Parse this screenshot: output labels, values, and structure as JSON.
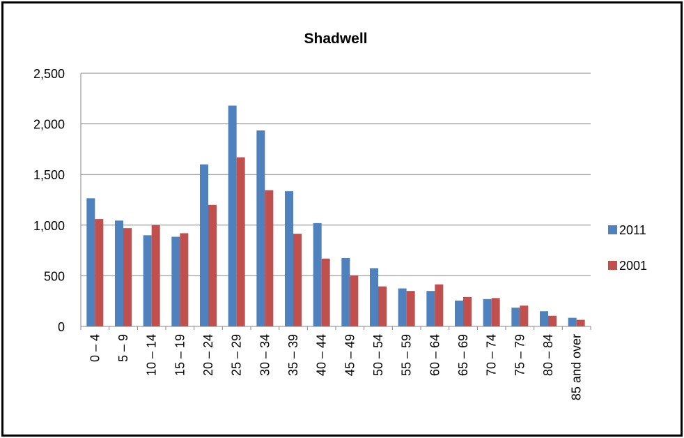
{
  "chart_data": {
    "type": "bar",
    "title": "Shadwell",
    "xlabel": "",
    "ylabel": "",
    "ylim": [
      0,
      2500
    ],
    "yticks": [
      0,
      500,
      1000,
      1500,
      2000,
      2500
    ],
    "ytick_labels": [
      "0",
      "500",
      "1,000",
      "1,500",
      "2,000",
      "2,500"
    ],
    "grid": true,
    "legend_position": "right",
    "categories": [
      "0 – 4",
      "5 – 9",
      "10 – 14",
      "15 – 19",
      "20 – 24",
      "25 – 29",
      "30 – 34",
      "35 – 39",
      "40 – 44",
      "45 – 49",
      "50 – 54",
      "55 – 59",
      "60 – 64",
      "65 – 69",
      "70 – 74",
      "75 – 79",
      "80 – 84",
      "85 and over"
    ],
    "series": [
      {
        "name": "2011",
        "color": "#4f81bd",
        "values": [
          1265,
          1045,
          900,
          885,
          1600,
          2180,
          1935,
          1335,
          1020,
          675,
          575,
          375,
          350,
          255,
          270,
          185,
          150,
          85
        ]
      },
      {
        "name": "2001",
        "color": "#c0504d",
        "values": [
          1060,
          970,
          1000,
          920,
          1200,
          1670,
          1345,
          915,
          670,
          505,
          395,
          350,
          415,
          290,
          280,
          205,
          105,
          65
        ]
      }
    ]
  }
}
